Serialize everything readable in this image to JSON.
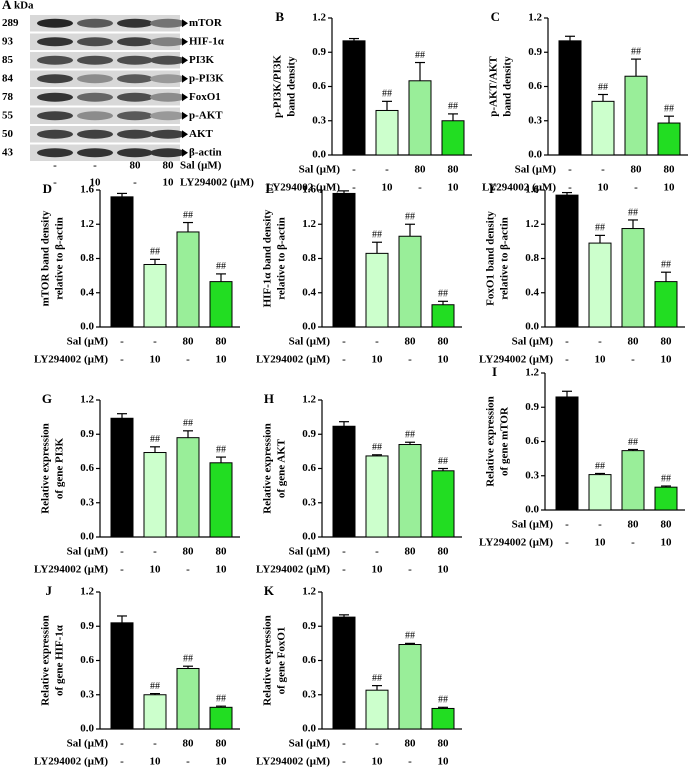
{
  "blot": {
    "panel": "A",
    "unit": "kDa",
    "rows": [
      {
        "kda": 289,
        "name": "mTOR"
      },
      {
        "kda": 93,
        "name": "HIF-1α"
      },
      {
        "kda": 85,
        "name": "PI3K"
      },
      {
        "kda": 84,
        "name": "p-PI3K"
      },
      {
        "kda": 78,
        "name": "FoxO1"
      },
      {
        "kda": 55,
        "name": "p-AKT"
      },
      {
        "kda": 50,
        "name": "AKT"
      },
      {
        "kda": 43,
        "name": "β-actin"
      }
    ],
    "conditions": [
      {
        "label": "Sal (μM)",
        "values": [
          "-",
          "-",
          "80",
          "80"
        ]
      },
      {
        "label": "LY294002 (μM)",
        "values": [
          "-",
          "10",
          "-",
          "10"
        ]
      }
    ]
  },
  "chart_data": [
    {
      "type": "bar",
      "panel": "B",
      "ylabel": [
        "p-PI3K/PI3K",
        "band density"
      ],
      "category_rows": [
        "Sal (μM)",
        "LY294002 (μM)"
      ],
      "categories": [
        [
          "-",
          "-"
        ],
        [
          "-",
          "10"
        ],
        [
          "80",
          "-"
        ],
        [
          "80",
          "10"
        ]
      ],
      "values": [
        1.0,
        0.39,
        0.65,
        0.3
      ],
      "errors": [
        0.02,
        0.08,
        0.16,
        0.06
      ],
      "annotations": [
        null,
        "##",
        "##",
        "##"
      ],
      "colors": [
        "#000000",
        "#ccffcc",
        "#99ee99",
        "#22dd22"
      ],
      "ylim": [
        0,
        1.2
      ],
      "yticks": [
        {
          "value": 0,
          "label": "0.0"
        },
        0.3,
        0.6,
        0.9,
        1.2
      ]
    },
    {
      "type": "bar",
      "panel": "C",
      "ylabel": [
        "p-AKT/AKT",
        "band density"
      ],
      "category_rows": [
        "Sal (μM)",
        "LY294002 (μM)"
      ],
      "categories": [
        [
          "-",
          "-"
        ],
        [
          "-",
          "10"
        ],
        [
          "80",
          "-"
        ],
        [
          "80",
          "10"
        ]
      ],
      "values": [
        1.0,
        0.47,
        0.69,
        0.28
      ],
      "errors": [
        0.04,
        0.06,
        0.15,
        0.06
      ],
      "annotations": [
        null,
        "##",
        "##",
        "##"
      ],
      "colors": [
        "#000000",
        "#ccffcc",
        "#99ee99",
        "#22dd22"
      ],
      "ylim": [
        0,
        1.2
      ],
      "yticks": [
        {
          "value": 0,
          "label": "0.0"
        },
        0.3,
        0.6,
        0.9,
        1.2
      ]
    },
    {
      "type": "bar",
      "panel": "D",
      "ylabel": [
        "mTOR band density",
        "relative to β-actin"
      ],
      "category_rows": [
        "Sal (μM)",
        "LY294002 (μM)"
      ],
      "categories": [
        [
          "-",
          "-"
        ],
        [
          "-",
          "10"
        ],
        [
          "80",
          "-"
        ],
        [
          "80",
          "10"
        ]
      ],
      "values": [
        1.52,
        0.73,
        1.11,
        0.53
      ],
      "errors": [
        0.04,
        0.06,
        0.11,
        0.09
      ],
      "annotations": [
        null,
        "##",
        "##",
        "##"
      ],
      "colors": [
        "#000000",
        "#ccffcc",
        "#99ee99",
        "#22dd22"
      ],
      "ylim": [
        0,
        1.6
      ],
      "yticks": [
        {
          "value": 0,
          "label": "0.0"
        },
        0.4,
        0.8,
        1.2,
        1.6
      ]
    },
    {
      "type": "bar",
      "panel": "E",
      "ylabel": [
        "HIF-1α band density",
        "relative to β-actin"
      ],
      "category_rows": [
        "Sal (μM)",
        "LY294002 (μM)"
      ],
      "categories": [
        [
          "-",
          "-"
        ],
        [
          "-",
          "10"
        ],
        [
          "80",
          "-"
        ],
        [
          "80",
          "10"
        ]
      ],
      "values": [
        1.56,
        0.86,
        1.06,
        0.26
      ],
      "errors": [
        0.03,
        0.13,
        0.14,
        0.04
      ],
      "annotations": [
        null,
        "##",
        "##",
        "##"
      ],
      "colors": [
        "#000000",
        "#ccffcc",
        "#99ee99",
        "#22dd22"
      ],
      "ylim": [
        0,
        1.6
      ],
      "yticks": [
        {
          "value": 0,
          "label": "0.0"
        },
        0.4,
        0.8,
        1.2,
        1.6
      ]
    },
    {
      "type": "bar",
      "panel": "F",
      "ylabel": [
        "FoxO1 band density",
        "relative to β-actin"
      ],
      "category_rows": [
        "Sal (μM)",
        "LY294002 (μM)"
      ],
      "categories": [
        [
          "-",
          "-"
        ],
        [
          "-",
          "10"
        ],
        [
          "80",
          "-"
        ],
        [
          "80",
          "10"
        ]
      ],
      "values": [
        1.54,
        0.98,
        1.15,
        0.53
      ],
      "errors": [
        0.03,
        0.09,
        0.1,
        0.11
      ],
      "annotations": [
        null,
        "##",
        "##",
        "##"
      ],
      "colors": [
        "#000000",
        "#ccffcc",
        "#99ee99",
        "#22dd22"
      ],
      "ylim": [
        0,
        1.6
      ],
      "yticks": [
        {
          "value": 0,
          "label": "0.0"
        },
        0.4,
        0.8,
        1.2,
        1.6
      ]
    },
    {
      "type": "bar",
      "panel": "G",
      "ylabel": [
        "Relative expression",
        "of gene PI3K"
      ],
      "category_rows": [
        "Sal (μM)",
        "LY294002 (μM)"
      ],
      "categories": [
        [
          "-",
          "-"
        ],
        [
          "-",
          "10"
        ],
        [
          "80",
          "-"
        ],
        [
          "80",
          "10"
        ]
      ],
      "values": [
        1.04,
        0.74,
        0.87,
        0.65
      ],
      "errors": [
        0.04,
        0.05,
        0.06,
        0.05
      ],
      "annotations": [
        null,
        "##",
        "##",
        "##"
      ],
      "colors": [
        "#000000",
        "#ccffcc",
        "#99ee99",
        "#22dd22"
      ],
      "ylim": [
        0,
        1.2
      ],
      "yticks": [
        {
          "value": 0,
          "label": "0.0"
        },
        0.3,
        0.6,
        0.9,
        1.2
      ]
    },
    {
      "type": "bar",
      "panel": "H",
      "ylabel": [
        "Relative expression",
        "of gene AKT"
      ],
      "category_rows": [
        "Sal (μM)",
        "LY294002 (μM)"
      ],
      "categories": [
        [
          "-",
          "-"
        ],
        [
          "-",
          "10"
        ],
        [
          "80",
          "-"
        ],
        [
          "80",
          "10"
        ]
      ],
      "values": [
        0.97,
        0.71,
        0.81,
        0.58
      ],
      "errors": [
        0.04,
        0.01,
        0.02,
        0.02
      ],
      "annotations": [
        null,
        "##",
        "##",
        "##"
      ],
      "colors": [
        "#000000",
        "#ccffcc",
        "#99ee99",
        "#22dd22"
      ],
      "ylim": [
        0,
        1.2
      ],
      "yticks": [
        {
          "value": 0,
          "label": "0.0"
        },
        0.3,
        0.6,
        0.9,
        1.2
      ]
    },
    {
      "type": "bar",
      "panel": "I",
      "ylabel": [
        "Relative expression",
        "of gene mTOR"
      ],
      "category_rows": [
        "Sal (μM)",
        "LY294002 (μM)"
      ],
      "categories": [
        [
          "-",
          "-"
        ],
        [
          "-",
          "10"
        ],
        [
          "80",
          "-"
        ],
        [
          "80",
          "10"
        ]
      ],
      "values": [
        0.99,
        0.31,
        0.52,
        0.2
      ],
      "errors": [
        0.05,
        0.01,
        0.01,
        0.01
      ],
      "annotations": [
        null,
        "##",
        "##",
        "##"
      ],
      "colors": [
        "#000000",
        "#ccffcc",
        "#99ee99",
        "#22dd22"
      ],
      "ylim": [
        0,
        1.2
      ],
      "yticks": [
        {
          "value": 0,
          "label": "0.0"
        },
        0.3,
        0.6,
        0.9,
        1.2
      ]
    },
    {
      "type": "bar",
      "panel": "J",
      "ylabel": [
        "Relative expression",
        "of gene HIF-1α"
      ],
      "category_rows": [
        "Sal (μM)",
        "LY294002 (μM)"
      ],
      "categories": [
        [
          "-",
          "-"
        ],
        [
          "-",
          "10"
        ],
        [
          "80",
          "-"
        ],
        [
          "80",
          "10"
        ]
      ],
      "values": [
        0.93,
        0.3,
        0.53,
        0.19
      ],
      "errors": [
        0.06,
        0.01,
        0.02,
        0.01
      ],
      "annotations": [
        null,
        "##",
        "##",
        "##"
      ],
      "colors": [
        "#000000",
        "#ccffcc",
        "#99ee99",
        "#22dd22"
      ],
      "ylim": [
        0,
        1.2
      ],
      "yticks": [
        {
          "value": 0,
          "label": "0.0"
        },
        0.3,
        0.6,
        0.9,
        1.2
      ]
    },
    {
      "type": "bar",
      "panel": "K",
      "ylabel": [
        "Relative expression",
        "of gene FoxO1"
      ],
      "category_rows": [
        "Sal (μM)",
        "LY294002 (μM)"
      ],
      "categories": [
        [
          "-",
          "-"
        ],
        [
          "-",
          "10"
        ],
        [
          "80",
          "-"
        ],
        [
          "80",
          "10"
        ]
      ],
      "values": [
        0.98,
        0.34,
        0.74,
        0.18
      ],
      "errors": [
        0.02,
        0.04,
        0.01,
        0.01
      ],
      "annotations": [
        null,
        "##",
        "##",
        "##"
      ],
      "colors": [
        "#000000",
        "#ccffcc",
        "#99ee99",
        "#22dd22"
      ],
      "ylim": [
        0,
        1.2
      ],
      "yticks": [
        {
          "value": 0,
          "label": "0.0"
        },
        0.3,
        0.6,
        0.9,
        1.2
      ]
    }
  ]
}
